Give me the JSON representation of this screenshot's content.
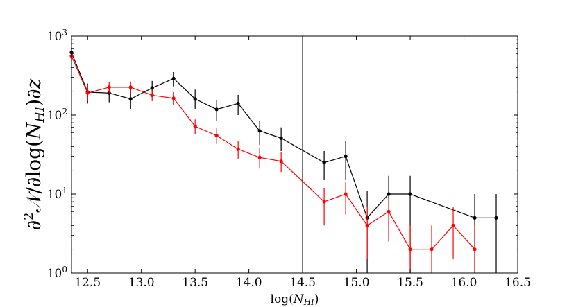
{
  "chart_data": {
    "type": "line",
    "title": "",
    "xlabel": "log(N_HI)",
    "xlabel_main": "log(",
    "xlabel_italic": "N",
    "xlabel_sub": "HI",
    "xlabel_end": ")",
    "ylabel": "∂²𝒩/∂log(N_HI)∂z",
    "ylabel_pre": "∂",
    "ylabel_sup": "2",
    "ylabel_mid": "𝒩/∂log(",
    "ylabel_italic": "N",
    "ylabel_sub": "HI",
    "ylabel_post": ")∂",
    "ylabel_z": "z",
    "yscale": "log",
    "xlim": [
      12.35,
      16.5
    ],
    "ylim": [
      1,
      1000
    ],
    "x_ticks": [
      12.5,
      13.0,
      13.5,
      14.0,
      14.5,
      15.0,
      15.5,
      16.0,
      16.5
    ],
    "x_tick_labels": [
      "12.5",
      "13.0",
      "13.5",
      "14.0",
      "14.5",
      "15.0",
      "15.5",
      "16.0",
      "16.5"
    ],
    "y_ticks": [
      {
        "value": 1,
        "base": "10",
        "exp": "0"
      },
      {
        "value": 10,
        "base": "10",
        "exp": "1"
      },
      {
        "value": 100,
        "base": "10",
        "exp": "2"
      },
      {
        "value": 1000,
        "base": "10",
        "exp": "3"
      }
    ],
    "vertical_line_x": 14.5,
    "grid": false,
    "series": [
      {
        "color": "#000000",
        "points": [
          {
            "x": 12.35,
            "y": 620,
            "lo": 520,
            "hi": 700
          },
          {
            "x": 12.5,
            "y": 195,
            "lo": 140,
            "hi": 250
          },
          {
            "x": 12.7,
            "y": 190,
            "lo": 145,
            "hi": 240
          },
          {
            "x": 12.9,
            "y": 160,
            "lo": 120,
            "hi": 210
          },
          {
            "x": 13.1,
            "y": 220,
            "lo": 170,
            "hi": 270
          },
          {
            "x": 13.3,
            "y": 290,
            "lo": 230,
            "hi": 350
          },
          {
            "x": 13.5,
            "y": 160,
            "lo": 120,
            "hi": 210
          },
          {
            "x": 13.7,
            "y": 118,
            "lo": 85,
            "hi": 155
          },
          {
            "x": 13.9,
            "y": 140,
            "lo": 100,
            "hi": 180
          },
          {
            "x": 14.1,
            "y": 63,
            "lo": 42,
            "hi": 85
          },
          {
            "x": 14.3,
            "y": 51,
            "lo": 35,
            "hi": 70
          },
          {
            "x": 14.7,
            "y": 25,
            "lo": 15,
            "hi": 35
          },
          {
            "x": 14.9,
            "y": 30,
            "lo": 15,
            "hi": 47
          },
          {
            "x": 15.1,
            "y": 5,
            "lo": 1,
            "hi": 11
          },
          {
            "x": 15.3,
            "y": 10,
            "lo": 3,
            "hi": 17
          },
          {
            "x": 15.5,
            "y": 10,
            "lo": 1,
            "hi": 17
          },
          {
            "x": 16.1,
            "y": 5,
            "lo": 1,
            "hi": 10
          },
          {
            "x": 16.3,
            "y": 5,
            "lo": 1,
            "hi": 10
          }
        ]
      },
      {
        "color": "#ff0000",
        "points": [
          {
            "x": 12.35,
            "y": 560,
            "lo": 470,
            "hi": 650
          },
          {
            "x": 12.5,
            "y": 190,
            "lo": 150,
            "hi": 240
          },
          {
            "x": 12.7,
            "y": 225,
            "lo": 185,
            "hi": 265
          },
          {
            "x": 12.9,
            "y": 225,
            "lo": 185,
            "hi": 265
          },
          {
            "x": 13.1,
            "y": 178,
            "lo": 150,
            "hi": 210
          },
          {
            "x": 13.3,
            "y": 163,
            "lo": 135,
            "hi": 195
          },
          {
            "x": 13.5,
            "y": 72,
            "lo": 57,
            "hi": 88
          },
          {
            "x": 13.7,
            "y": 55,
            "lo": 43,
            "hi": 68
          },
          {
            "x": 13.9,
            "y": 37,
            "lo": 28,
            "hi": 47
          },
          {
            "x": 14.1,
            "y": 29,
            "lo": 21,
            "hi": 38
          },
          {
            "x": 14.3,
            "y": 26,
            "lo": 19,
            "hi": 34
          },
          {
            "x": 14.7,
            "y": 8,
            "lo": 4,
            "hi": 12
          },
          {
            "x": 14.9,
            "y": 10,
            "lo": 5.5,
            "hi": 14
          },
          {
            "x": 15.1,
            "y": 4,
            "lo": 1.5,
            "hi": 7
          },
          {
            "x": 15.3,
            "y": 6,
            "lo": 2.5,
            "hi": 9
          },
          {
            "x": 15.5,
            "y": 2,
            "lo": 1,
            "hi": 4
          },
          {
            "x": 15.7,
            "y": 2,
            "lo": 1,
            "hi": 4
          },
          {
            "x": 15.9,
            "y": 4,
            "lo": 1.5,
            "hi": 6.8
          },
          {
            "x": 16.1,
            "y": 2,
            "lo": 1,
            "hi": 4
          }
        ]
      }
    ]
  }
}
